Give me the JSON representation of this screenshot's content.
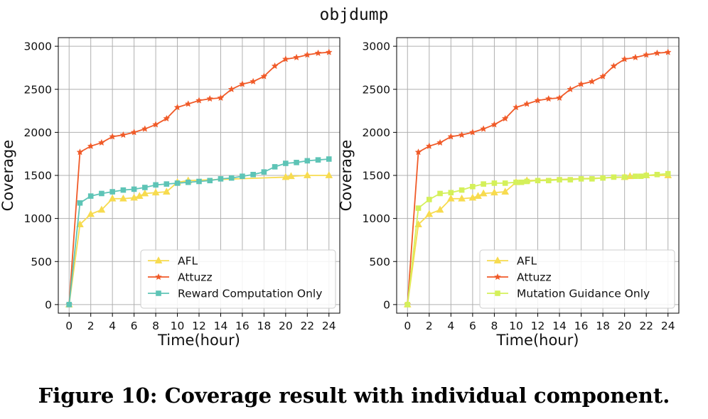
{
  "figure": {
    "title": "objdump",
    "caption": "Figure 10: Coverage result with individual component."
  },
  "colors": {
    "afl": "#f7db4f",
    "attuzz": "#f05a28",
    "reward": "#5ec4b6",
    "mutation": "#d4f05a"
  },
  "chart_data": [
    {
      "type": "line",
      "xlabel": "Time(hour)",
      "ylabel": "Coverage",
      "xlim": [
        -1,
        25
      ],
      "ylim": [
        -100,
        3100
      ],
      "xticks": [
        0,
        2,
        4,
        6,
        8,
        10,
        12,
        14,
        16,
        18,
        20,
        22,
        24
      ],
      "yticks": [
        0,
        500,
        1000,
        1500,
        2000,
        2500,
        3000
      ],
      "grid": true,
      "legend_position": "lower right",
      "series": [
        {
          "name": "AFL",
          "color": "#f7db4f",
          "marker": "triangle",
          "x": [
            0,
            1,
            2,
            3,
            4,
            5,
            6,
            6.5,
            7,
            8,
            9,
            10,
            11,
            20,
            20.5,
            22,
            24
          ],
          "y": [
            0,
            930,
            1050,
            1100,
            1230,
            1230,
            1240,
            1260,
            1290,
            1300,
            1310,
            1420,
            1440,
            1480,
            1490,
            1500,
            1500
          ]
        },
        {
          "name": "Attuzz",
          "color": "#f05a28",
          "marker": "star",
          "x": [
            0,
            1,
            2,
            3,
            4,
            5,
            6,
            7,
            8,
            9,
            10,
            11,
            12,
            13,
            14,
            15,
            16,
            17,
            18,
            19,
            20,
            21,
            22,
            23,
            24
          ],
          "y": [
            0,
            1770,
            1840,
            1880,
            1950,
            1970,
            2000,
            2040,
            2090,
            2160,
            2290,
            2330,
            2370,
            2390,
            2400,
            2500,
            2560,
            2590,
            2650,
            2770,
            2850,
            2870,
            2900,
            2920,
            2930
          ]
        },
        {
          "name": "Reward Computation Only",
          "color": "#5ec4b6",
          "marker": "square",
          "x": [
            0,
            1,
            2,
            3,
            4,
            5,
            6,
            7,
            8,
            9,
            10,
            11,
            12,
            13,
            14,
            15,
            16,
            17,
            18,
            19,
            20,
            21,
            22,
            23,
            24
          ],
          "y": [
            0,
            1180,
            1260,
            1290,
            1310,
            1330,
            1340,
            1360,
            1390,
            1400,
            1410,
            1420,
            1430,
            1440,
            1460,
            1470,
            1490,
            1510,
            1540,
            1600,
            1640,
            1650,
            1670,
            1680,
            1690
          ]
        }
      ]
    },
    {
      "type": "line",
      "xlabel": "Time(hour)",
      "ylabel": "Coverage",
      "xlim": [
        -1,
        25
      ],
      "ylim": [
        -100,
        3100
      ],
      "xticks": [
        0,
        2,
        4,
        6,
        8,
        10,
        12,
        14,
        16,
        18,
        20,
        22,
        24
      ],
      "yticks": [
        0,
        500,
        1000,
        1500,
        2000,
        2500,
        3000
      ],
      "grid": true,
      "legend_position": "lower right",
      "series": [
        {
          "name": "AFL",
          "color": "#f7db4f",
          "marker": "triangle",
          "x": [
            0,
            1,
            2,
            3,
            4,
            5,
            6,
            6.5,
            7,
            8,
            9,
            10,
            11,
            20,
            20.5,
            22,
            24
          ],
          "y": [
            0,
            930,
            1050,
            1100,
            1230,
            1230,
            1240,
            1260,
            1290,
            1300,
            1310,
            1420,
            1440,
            1480,
            1490,
            1500,
            1500
          ]
        },
        {
          "name": "Attuzz",
          "color": "#f05a28",
          "marker": "star",
          "x": [
            0,
            1,
            2,
            3,
            4,
            5,
            6,
            7,
            8,
            9,
            10,
            11,
            12,
            13,
            14,
            15,
            16,
            17,
            18,
            19,
            20,
            21,
            22,
            23,
            24
          ],
          "y": [
            0,
            1770,
            1840,
            1880,
            1950,
            1970,
            2000,
            2040,
            2090,
            2160,
            2290,
            2330,
            2370,
            2390,
            2400,
            2500,
            2560,
            2590,
            2650,
            2770,
            2850,
            2870,
            2900,
            2920,
            2930
          ]
        },
        {
          "name": "Mutation Guidance Only",
          "color": "#d4f05a",
          "marker": "square",
          "x": [
            0,
            1,
            2,
            3,
            4,
            5,
            6,
            7,
            8,
            9,
            10,
            10.5,
            11,
            12,
            13,
            14,
            15,
            16,
            17,
            18,
            19,
            20,
            21,
            21.5,
            22,
            23,
            24
          ],
          "y": [
            0,
            1120,
            1220,
            1290,
            1300,
            1330,
            1370,
            1400,
            1410,
            1410,
            1420,
            1420,
            1430,
            1440,
            1440,
            1450,
            1450,
            1460,
            1460,
            1470,
            1480,
            1480,
            1490,
            1490,
            1500,
            1510,
            1520
          ]
        }
      ]
    }
  ]
}
